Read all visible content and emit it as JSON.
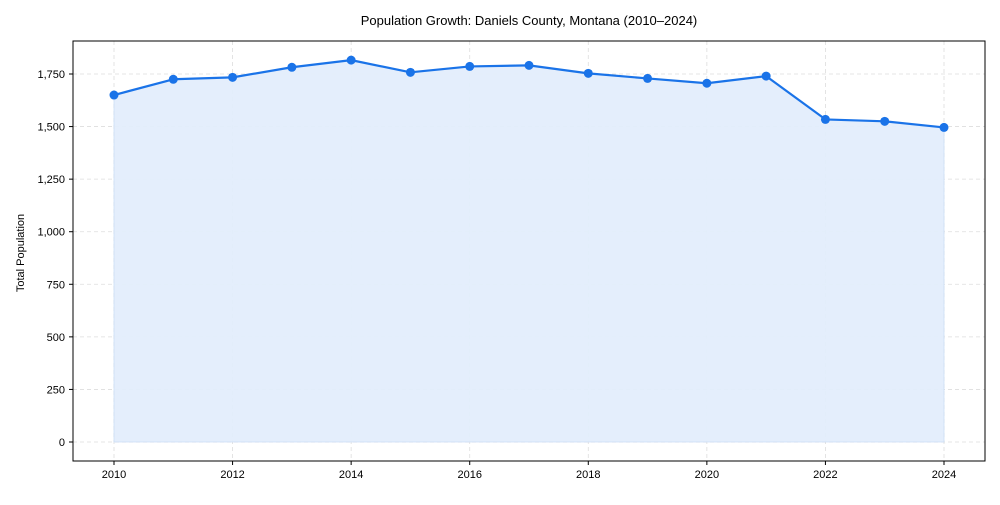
{
  "chart_data": {
    "type": "line",
    "title": "Population Growth: Daniels County, Montana (2010–2024)",
    "xlabel": "",
    "ylabel": "Total Population",
    "x": [
      2010,
      2011,
      2012,
      2013,
      2014,
      2015,
      2016,
      2017,
      2018,
      2019,
      2020,
      2021,
      2022,
      2023,
      2024
    ],
    "series": [
      {
        "name": "Total Population",
        "values": [
          1650,
          1725,
          1734,
          1782,
          1816,
          1758,
          1786,
          1791,
          1753,
          1729,
          1706,
          1740,
          1534,
          1525,
          1496
        ],
        "color": "#1a73e8",
        "fill": "#e3eefc",
        "marker": "circle"
      }
    ],
    "xticks": [
      2010,
      2012,
      2014,
      2016,
      2018,
      2020,
      2022,
      2024
    ],
    "xtick_labels": [
      "2010",
      "2012",
      "2014",
      "2016",
      "2018",
      "2020",
      "2022",
      "2024"
    ],
    "yticks": [
      0,
      250,
      500,
      750,
      1000,
      1250,
      1500,
      1750
    ],
    "ytick_labels": [
      "0",
      "250",
      "500",
      "750",
      "1,000",
      "1,250",
      "1,500",
      "1,750"
    ],
    "xlim": [
      2009.3,
      2024.7
    ],
    "ylim": [
      -90,
      1905
    ],
    "grid": true,
    "legend": null
  },
  "colors": {
    "line": "#1a73e8",
    "fill": "#e3eefc",
    "fill_edge": "#c9dcf5",
    "grid": "#dddddd",
    "axis": "#000000"
  }
}
